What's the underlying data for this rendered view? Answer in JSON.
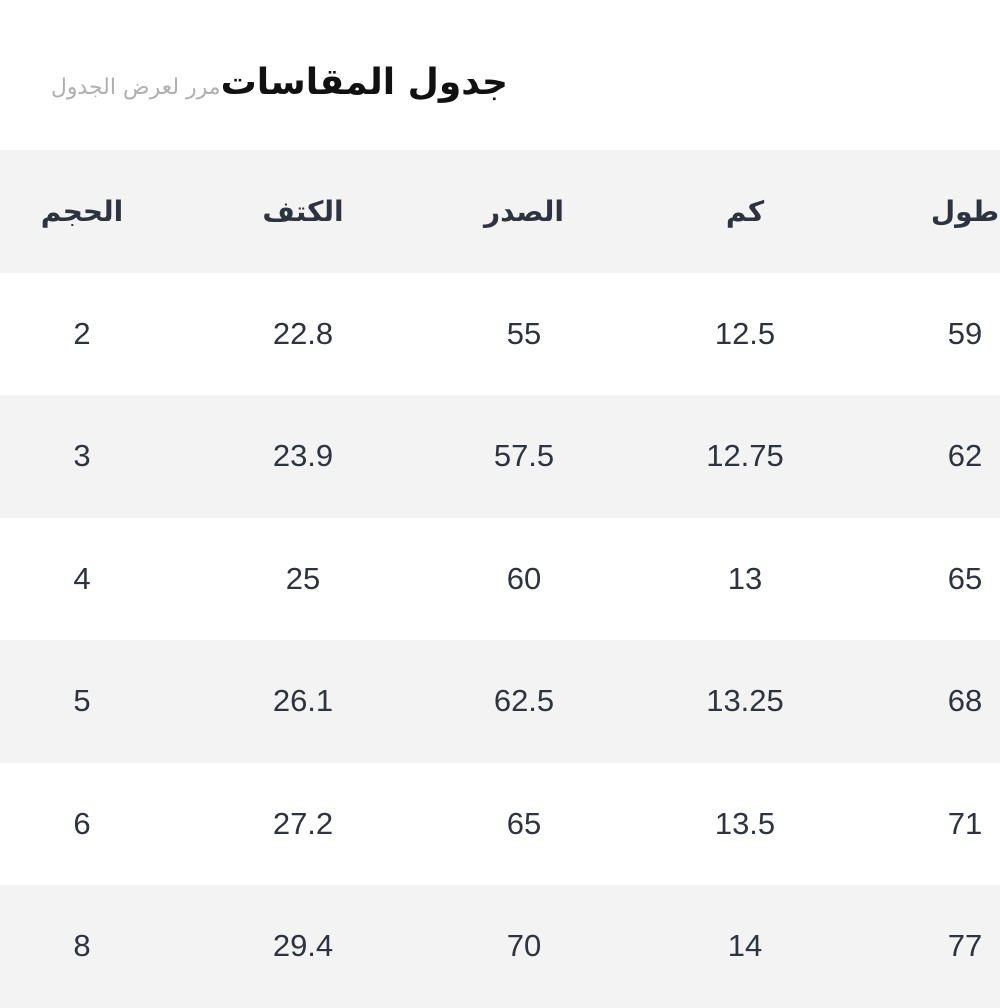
{
  "header": {
    "title": "جدول المقاسات",
    "scroll_hint": "مرر لعرض الجدول"
  },
  "table": {
    "columns": [
      "الحجم",
      "الكتف",
      "الصدر",
      "كم",
      "طول"
    ],
    "rows": [
      [
        "2",
        "22.8",
        "55",
        "12.5",
        "59"
      ],
      [
        "3",
        "23.9",
        "57.5",
        "12.75",
        "62"
      ],
      [
        "4",
        "25",
        "60",
        "13",
        "65"
      ],
      [
        "5",
        "26.1",
        "62.5",
        "13.25",
        "68"
      ],
      [
        "6",
        "27.2",
        "65",
        "13.5",
        "71"
      ],
      [
        "8",
        "29.4",
        "70",
        "14",
        "77"
      ]
    ]
  },
  "colors": {
    "header_bg": "#f3f3f4",
    "text": "#2e3340",
    "hint": "#b0b0b0"
  }
}
